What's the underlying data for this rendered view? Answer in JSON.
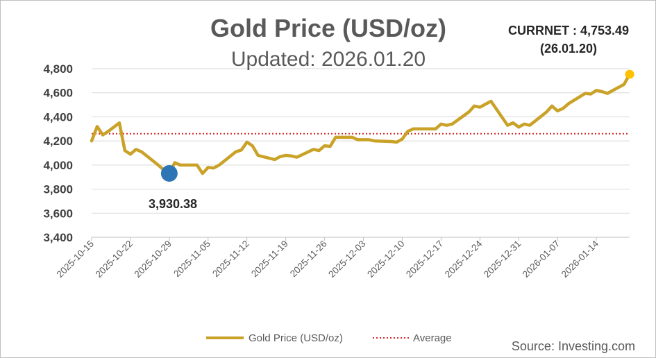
{
  "chart_data": {
    "type": "line",
    "title": "Gold Price (USD/oz)",
    "subtitle": "Updated: 2026.01.20",
    "xlabel": "",
    "ylabel": "",
    "ylim": [
      3400,
      4800
    ],
    "yticks": [
      3400,
      3600,
      3800,
      4000,
      4200,
      4400,
      4600,
      4800
    ],
    "ytick_labels": [
      "3,400",
      "3,600",
      "3,800",
      "4,000",
      "4,200",
      "4,400",
      "4,600",
      "4,800"
    ],
    "xlim": [
      "2025-10-15",
      "2026-01-20"
    ],
    "xticks": [
      "2025-10-15",
      "2025-10-22",
      "2025-10-29",
      "2025-11-05",
      "2025-11-12",
      "2025-11-19",
      "2025-11-26",
      "2025-12-03",
      "2025-12-10",
      "2025-12-17",
      "2025-12-24",
      "2025-12-31",
      "2026-01-07",
      "2026-01-14"
    ],
    "grid": "horizontal",
    "legend_position": "bottom",
    "series": [
      {
        "name": "Gold Price (USD/oz)",
        "color": "#c9a227",
        "points": [
          [
            "2025-10-15",
            4200
          ],
          [
            "2025-10-16",
            4320
          ],
          [
            "2025-10-17",
            4250
          ],
          [
            "2025-10-18",
            4280
          ],
          [
            "2025-10-20",
            4350
          ],
          [
            "2025-10-21",
            4120
          ],
          [
            "2025-10-22",
            4090
          ],
          [
            "2025-10-23",
            4130
          ],
          [
            "2025-10-24",
            4110
          ],
          [
            "2025-10-27",
            4000
          ],
          [
            "2025-10-28",
            3960
          ],
          [
            "2025-10-29",
            3930
          ],
          [
            "2025-10-30",
            4020
          ],
          [
            "2025-10-31",
            4000
          ],
          [
            "2025-11-03",
            4000
          ],
          [
            "2025-11-04",
            3930
          ],
          [
            "2025-11-05",
            3980
          ],
          [
            "2025-11-06",
            3975
          ],
          [
            "2025-11-07",
            4000
          ],
          [
            "2025-11-10",
            4110
          ],
          [
            "2025-11-11",
            4125
          ],
          [
            "2025-11-12",
            4190
          ],
          [
            "2025-11-13",
            4160
          ],
          [
            "2025-11-14",
            4080
          ],
          [
            "2025-11-17",
            4045
          ],
          [
            "2025-11-18",
            4070
          ],
          [
            "2025-11-19",
            4080
          ],
          [
            "2025-11-20",
            4075
          ],
          [
            "2025-11-21",
            4065
          ],
          [
            "2025-11-24",
            4130
          ],
          [
            "2025-11-25",
            4120
          ],
          [
            "2025-11-26",
            4160
          ],
          [
            "2025-11-27",
            4155
          ],
          [
            "2025-11-28",
            4230
          ],
          [
            "2025-12-01",
            4230
          ],
          [
            "2025-12-02",
            4210
          ],
          [
            "2025-12-03",
            4210
          ],
          [
            "2025-12-04",
            4210
          ],
          [
            "2025-12-05",
            4200
          ],
          [
            "2025-12-08",
            4195
          ],
          [
            "2025-12-09",
            4190
          ],
          [
            "2025-12-10",
            4215
          ],
          [
            "2025-12-11",
            4280
          ],
          [
            "2025-12-12",
            4300
          ],
          [
            "2025-12-15",
            4300
          ],
          [
            "2025-12-16",
            4300
          ],
          [
            "2025-12-17",
            4340
          ],
          [
            "2025-12-18",
            4330
          ],
          [
            "2025-12-19",
            4340
          ],
          [
            "2025-12-22",
            4440
          ],
          [
            "2025-12-23",
            4490
          ],
          [
            "2025-12-24",
            4480
          ],
          [
            "2025-12-26",
            4530
          ],
          [
            "2025-12-29",
            4330
          ],
          [
            "2025-12-30",
            4350
          ],
          [
            "2025-12-31",
            4315
          ],
          [
            "2026-01-01",
            4340
          ],
          [
            "2026-01-02",
            4330
          ],
          [
            "2026-01-05",
            4440
          ],
          [
            "2026-01-06",
            4490
          ],
          [
            "2026-01-07",
            4450
          ],
          [
            "2026-01-08",
            4470
          ],
          [
            "2026-01-09",
            4510
          ],
          [
            "2026-01-12",
            4595
          ],
          [
            "2026-01-13",
            4590
          ],
          [
            "2026-01-14",
            4620
          ],
          [
            "2026-01-15",
            4610
          ],
          [
            "2026-01-16",
            4595
          ],
          [
            "2026-01-19",
            4670
          ],
          [
            "2026-01-20",
            4753.49
          ]
        ]
      },
      {
        "name": "Average",
        "color": "#d62728",
        "style": "dotted",
        "value": 4260
      }
    ],
    "annotations": [
      {
        "label": "3,930.38",
        "x": "2025-10-29",
        "y": 3930.38,
        "marker_color": "#2e75b6"
      },
      {
        "label_lines": [
          "CURRNET : 4,753.49",
          "(26.01.20)"
        ],
        "x": "2026-01-20",
        "y": 4753.49,
        "marker_color": "#ffc000"
      }
    ],
    "source": "Source: Investing.com"
  }
}
